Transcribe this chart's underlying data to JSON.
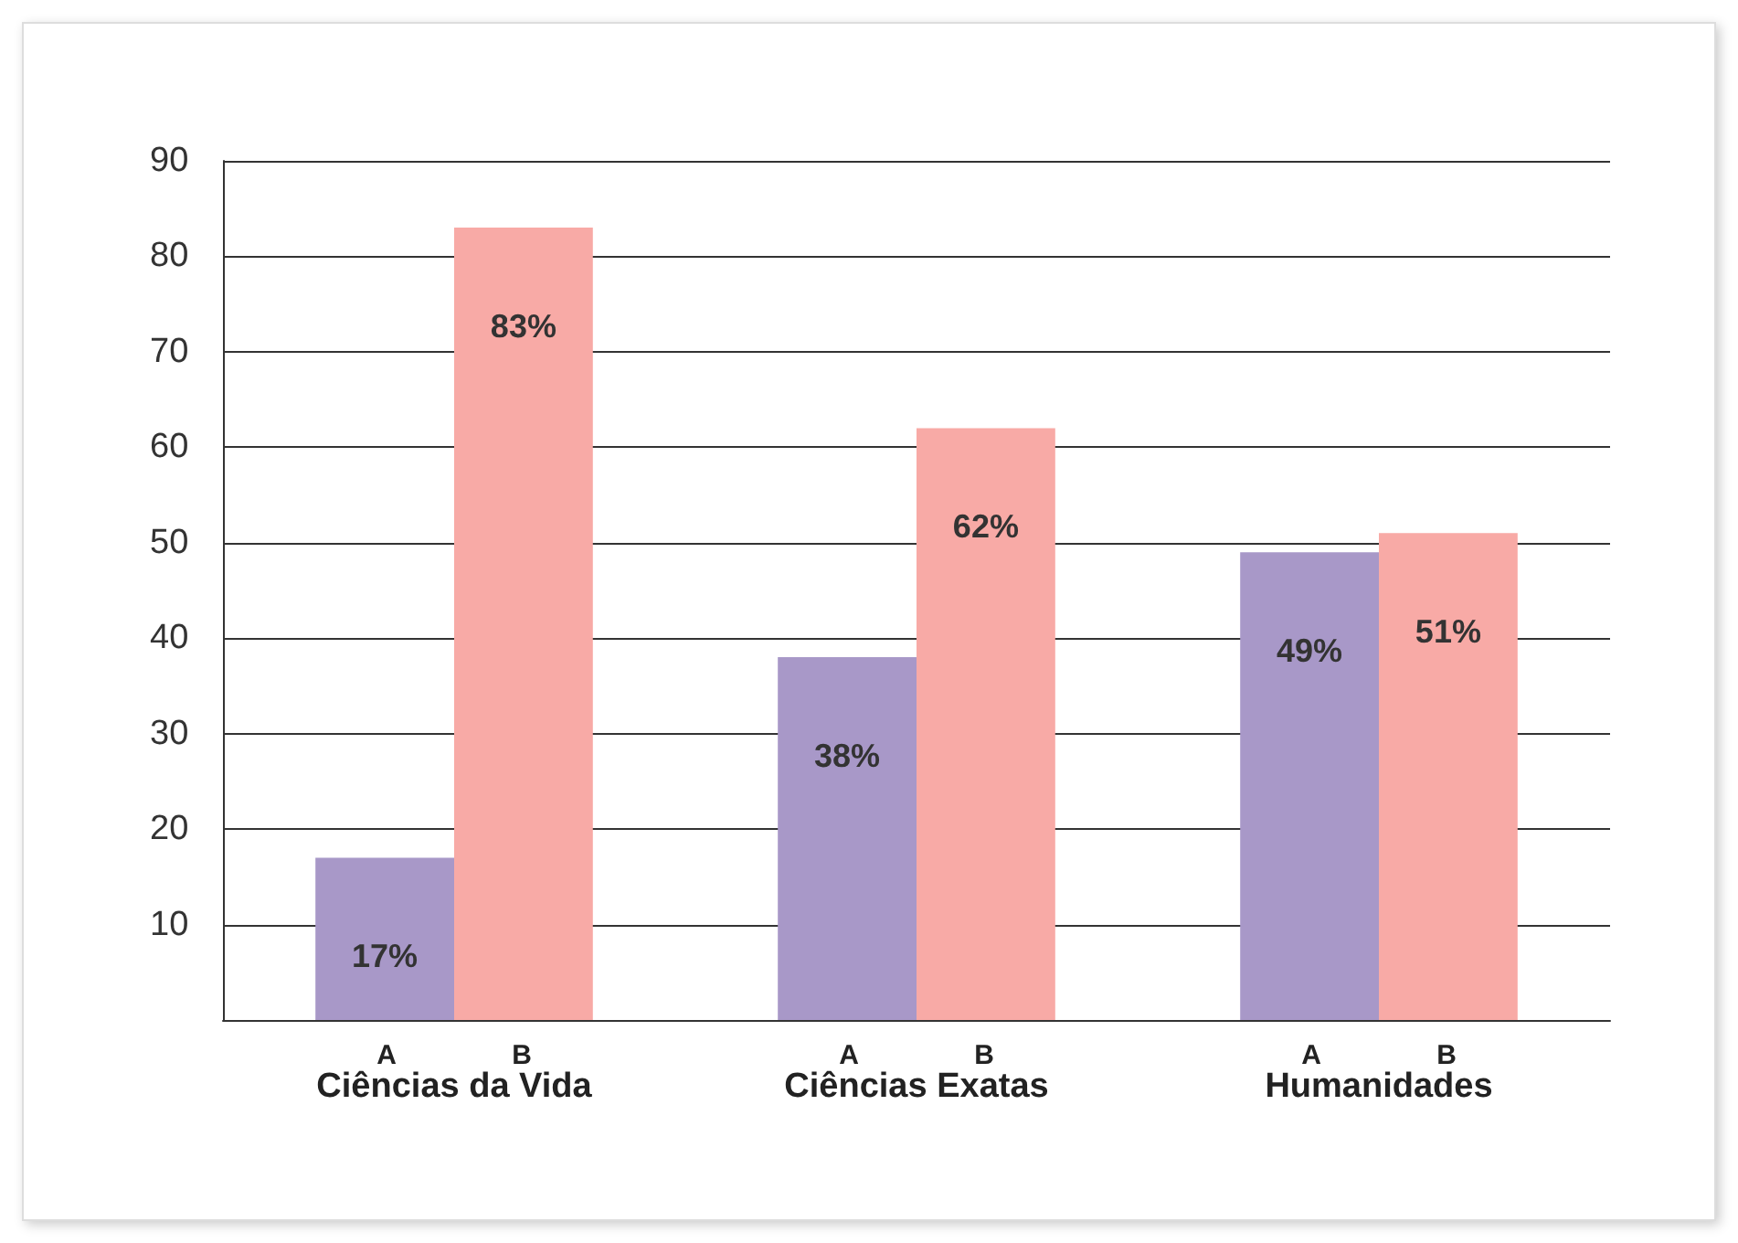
{
  "chart_data": {
    "type": "bar",
    "categories": [
      "Ciências da Vida",
      "Ciências Exatas",
      "Humanidades"
    ],
    "series": [
      {
        "name": "A",
        "color": "#a898c8",
        "values": [
          17,
          38,
          49
        ],
        "value_labels": [
          "17%",
          "38%",
          "49%"
        ]
      },
      {
        "name": "B",
        "color": "#f8aaa6",
        "values": [
          83,
          62,
          51
        ],
        "value_labels": [
          "83%",
          "62%",
          "51%"
        ]
      }
    ],
    "ylim": [
      0,
      90
    ],
    "yticks": [
      10,
      20,
      30,
      40,
      50,
      60,
      70,
      80,
      90
    ],
    "grid": "y",
    "legend": false
  }
}
